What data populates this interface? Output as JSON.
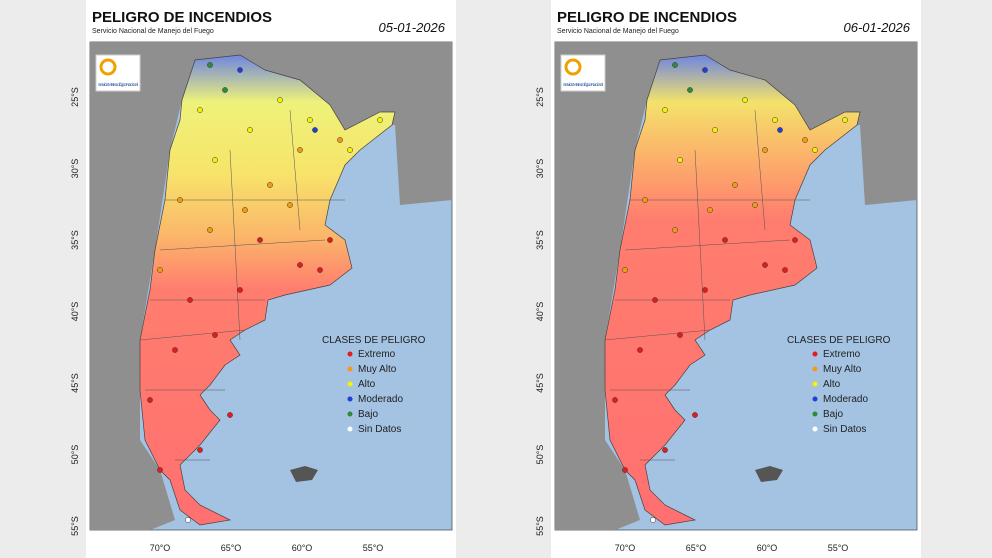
{
  "panels": [
    {
      "title": "PELIGRO DE INCENDIOS",
      "subtitle": "Servicio Nacional de Manejo del Fuego",
      "date": "05-01-2026",
      "logo": "Servicio Meteorológico Nacional",
      "y_labels": [
        "25°S",
        "30°S",
        "35°S",
        "40°S",
        "45°S",
        "50°S",
        "55°S"
      ],
      "x_labels": [
        "70°O",
        "65°O",
        "60°O",
        "55°O"
      ],
      "legend": {
        "title": "CLASES DE PELIGRO",
        "items": [
          {
            "label": "Extremo",
            "color": "#e41a1c"
          },
          {
            "label": "Muy Alto",
            "color": "#f39c12"
          },
          {
            "label": "Alto",
            "color": "#f2f20a"
          },
          {
            "label": "Moderado",
            "color": "#1f3fd6"
          },
          {
            "label": "Bajo",
            "color": "#2e8b3a"
          },
          {
            "label": "Sin Datos",
            "color": "#ffffff"
          }
        ]
      }
    },
    {
      "title": "PELIGRO DE INCENDIOS",
      "subtitle": "Servicio Nacional de Manejo del Fuego",
      "date": "06-01-2026",
      "logo": "Servicio Meteorológico Nacional",
      "y_labels": [
        "25°S",
        "30°S",
        "35°S",
        "40°S",
        "45°S",
        "50°S",
        "55°S"
      ],
      "x_labels": [
        "70°O",
        "65°O",
        "60°O",
        "55°O"
      ],
      "legend": {
        "title": "CLASES DE PELIGRO",
        "items": [
          {
            "label": "Extremo",
            "color": "#e41a1c"
          },
          {
            "label": "Muy Alto",
            "color": "#f39c12"
          },
          {
            "label": "Alto",
            "color": "#f2f20a"
          },
          {
            "label": "Moderado",
            "color": "#1f3fd6"
          },
          {
            "label": "Bajo",
            "color": "#2e8b3a"
          },
          {
            "label": "Sin Datos",
            "color": "#ffffff"
          }
        ]
      }
    }
  ]
}
